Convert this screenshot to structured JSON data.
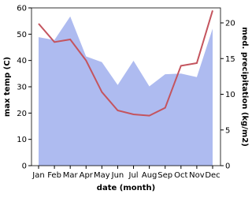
{
  "chart_data": {
    "type": "area-line",
    "categories": [
      "Jan",
      "Feb",
      "Mar",
      "Apr",
      "May",
      "Jun",
      "Jul",
      "Aug",
      "Sep",
      "Oct",
      "Nov",
      "Dec"
    ],
    "x_label": "date (month)",
    "y_label": "max temp (C)",
    "y2_label": "med. precipitation (kg/m2)",
    "ylim": [
      0,
      60
    ],
    "yticks": [
      0,
      10,
      20,
      30,
      40,
      50,
      60
    ],
    "y2lim": [
      0,
      22.1
    ],
    "y2ticks": [
      0,
      5,
      10,
      15,
      20
    ],
    "series": [
      {
        "name": "med. precipitation",
        "kind": "area",
        "axis": "y2",
        "color": "#aebbf0",
        "values": [
          18,
          17.6,
          20.9,
          15.3,
          14.5,
          11.3,
          14.7,
          11.1,
          12.8,
          12.9,
          12.4,
          19.2
        ]
      },
      {
        "name": "max temp",
        "kind": "line",
        "color": "#c4545e",
        "values": [
          54,
          47,
          48,
          40,
          28,
          21,
          19.5,
          19,
          22,
          38,
          39,
          59
        ]
      }
    ]
  }
}
